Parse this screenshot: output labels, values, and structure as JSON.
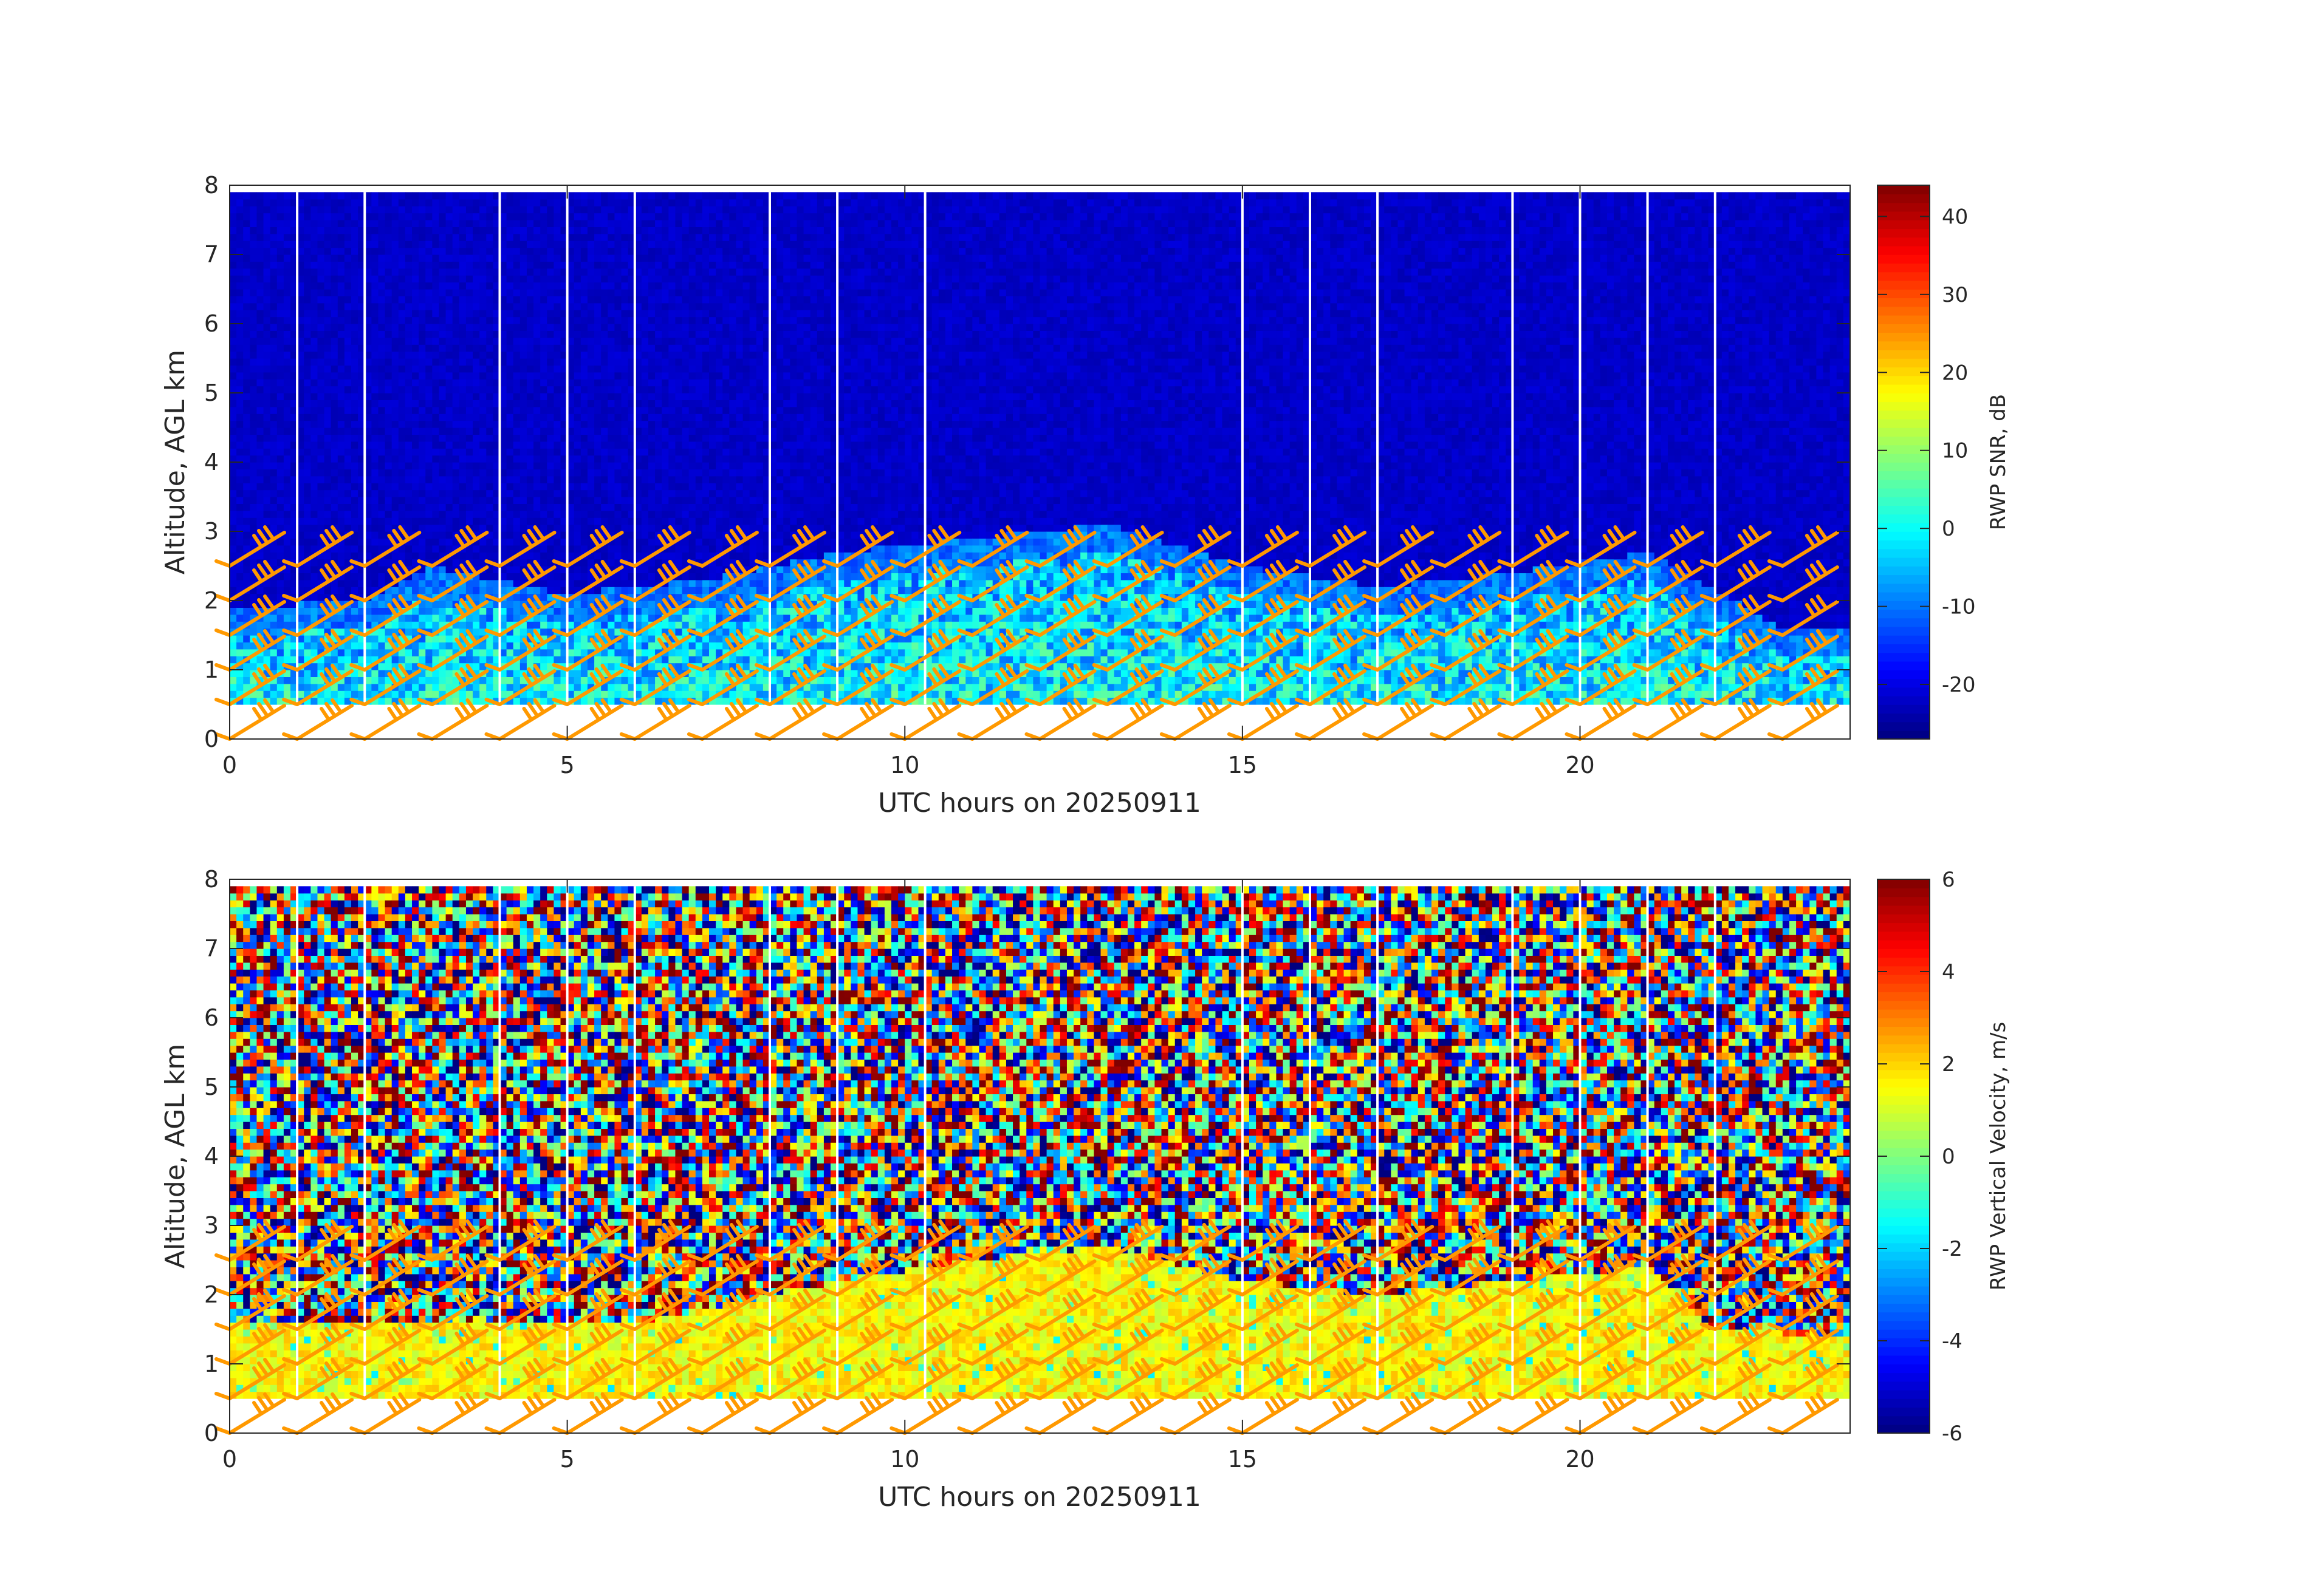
{
  "figure": {
    "date": "20250911",
    "background": "#ffffff"
  },
  "colormap": "jet",
  "barb_color": "#ff9900",
  "chart_data": [
    {
      "type": "heatmap",
      "title": "",
      "xlabel": "UTC hours on 20250911",
      "ylabel": "Altitude, AGL km",
      "xlim": [
        0,
        24
      ],
      "ylim": [
        0,
        8
      ],
      "x_ticks": [
        0,
        5,
        10,
        15,
        20
      ],
      "y_ticks": [
        0,
        1,
        2,
        3,
        4,
        5,
        6,
        7,
        8
      ],
      "x_tick_labels": [
        "0",
        "5",
        "10",
        "15",
        "20"
      ],
      "y_tick_labels": [
        "0",
        "1",
        "2",
        "3",
        "4",
        "5",
        "6",
        "7",
        "8"
      ],
      "grid": false,
      "variable": "RWP SNR",
      "colorbar": {
        "label": "RWP SNR, dB",
        "range": [
          -27,
          44
        ],
        "ticks": [
          -20,
          -10,
          0,
          10,
          20,
          30,
          40
        ],
        "tick_labels": [
          "-20",
          "-10",
          "0",
          "10",
          "20",
          "30",
          "40"
        ]
      },
      "data_coverage": {
        "time_range_hours": [
          0,
          24
        ],
        "altitude_range_km": [
          0.5,
          7.9
        ],
        "no_data_time_gaps_hours": [
          1,
          2,
          4,
          5,
          6,
          8,
          9,
          10.3,
          15,
          16,
          17,
          19,
          20,
          21,
          22
        ]
      },
      "background_level_db": -22,
      "boundary_layer_top_km": [
        {
          "hour": 0,
          "km": 1.5
        },
        {
          "hour": 2,
          "km": 1.6
        },
        {
          "hour": 3,
          "km": 2.1
        },
        {
          "hour": 5,
          "km": 1.7
        },
        {
          "hour": 7,
          "km": 1.9
        },
        {
          "hour": 9,
          "km": 2.3
        },
        {
          "hour": 11,
          "km": 2.5
        },
        {
          "hour": 13,
          "km": 2.7
        },
        {
          "hour": 15,
          "km": 2.1
        },
        {
          "hour": 17,
          "km": 1.8
        },
        {
          "hour": 19,
          "km": 2.0
        },
        {
          "hour": 21,
          "km": 2.3
        },
        {
          "hour": 23,
          "km": 1.2
        }
      ],
      "wind_barbs": {
        "times_hours": [
          0,
          1,
          2,
          3,
          4,
          5,
          6,
          7,
          8,
          9,
          10,
          11,
          12,
          13,
          14,
          15,
          16,
          17,
          18,
          19,
          20,
          21,
          22,
          23
        ],
        "heights_km": [
          0,
          0.5,
          1,
          1.5,
          2,
          2.5
        ]
      }
    },
    {
      "type": "heatmap",
      "title": "",
      "xlabel": "UTC hours on 20250911",
      "ylabel": "Altitude, AGL km",
      "xlim": [
        0,
        24
      ],
      "ylim": [
        0,
        8
      ],
      "x_ticks": [
        0,
        5,
        10,
        15,
        20
      ],
      "y_ticks": [
        0,
        1,
        2,
        3,
        4,
        5,
        6,
        7,
        8
      ],
      "x_tick_labels": [
        "0",
        "5",
        "10",
        "15",
        "20"
      ],
      "y_tick_labels": [
        "0",
        "1",
        "2",
        "3",
        "4",
        "5",
        "6",
        "7",
        "8"
      ],
      "grid": false,
      "variable": "RWP Vertical Velocity",
      "colorbar": {
        "label": "RWP Vertical Velocity, m/s",
        "range": [
          -6,
          6
        ],
        "ticks": [
          -6,
          -4,
          -2,
          0,
          2,
          4,
          6
        ],
        "tick_labels": [
          "-6",
          "-4",
          "-2",
          "0",
          "2",
          "4",
          "6"
        ]
      },
      "data_coverage": {
        "time_range_hours": [
          0,
          24
        ],
        "altitude_range_km": [
          0.5,
          7.9
        ],
        "no_data_time_gaps_hours": [
          1,
          2,
          4,
          5,
          6,
          8,
          9,
          10.3,
          15,
          16,
          17,
          19,
          20,
          21,
          22
        ]
      },
      "boundary_layer_level_ms": 1.5,
      "boundary_layer_top_km": [
        {
          "hour": 0,
          "km": 1.55
        },
        {
          "hour": 3,
          "km": 1.6
        },
        {
          "hour": 6,
          "km": 1.6
        },
        {
          "hour": 9,
          "km": 2.2
        },
        {
          "hour": 11,
          "km": 2.5
        },
        {
          "hour": 13,
          "km": 2.7
        },
        {
          "hour": 15,
          "km": 2.2
        },
        {
          "hour": 17,
          "km": 2.0
        },
        {
          "hour": 19,
          "km": 2.2
        },
        {
          "hour": 21,
          "km": 2.4
        },
        {
          "hour": 22,
          "km": 1.5
        },
        {
          "hour": 24,
          "km": 1.4
        }
      ],
      "wind_barbs": {
        "times_hours": [
          0,
          1,
          2,
          3,
          4,
          5,
          6,
          7,
          8,
          9,
          10,
          11,
          12,
          13,
          14,
          15,
          16,
          17,
          18,
          19,
          20,
          21,
          22,
          23
        ],
        "heights_km": [
          0,
          0.5,
          1,
          1.5,
          2,
          2.5
        ]
      }
    }
  ]
}
